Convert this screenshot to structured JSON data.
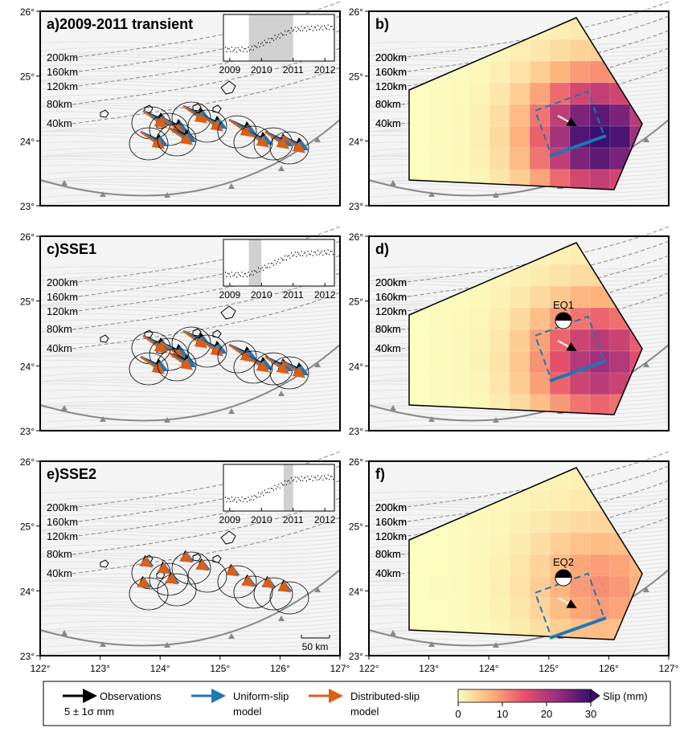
{
  "panels": [
    {
      "id": "a",
      "letter": "a)",
      "title": "2009-2011 transient",
      "inset": true,
      "shade": [
        2009.6,
        2011.0
      ]
    },
    {
      "id": "b",
      "letter": "b)",
      "title": "",
      "slip_scale": 1.0,
      "eq": ""
    },
    {
      "id": "c",
      "letter": "c)",
      "title": "SSE1",
      "inset": true,
      "shade": [
        2009.6,
        2010.0
      ]
    },
    {
      "id": "d",
      "letter": "d)",
      "title": "",
      "slip_scale": 0.7,
      "eq": "EQ1"
    },
    {
      "id": "e",
      "letter": "e)",
      "title": "SSE2",
      "inset": true,
      "shade": [
        2010.7,
        2011.0
      ]
    },
    {
      "id": "f",
      "letter": "f)",
      "title": "",
      "slip_scale": 0.3,
      "eq": "EQ2"
    }
  ],
  "contours": [
    "200km",
    "160km",
    "120km",
    "80km",
    "40km"
  ],
  "lon_ticks": [
    "122°",
    "123°",
    "124°",
    "125°",
    "126°",
    "127°"
  ],
  "lat_ticks": [
    "26°",
    "25°",
    "24°",
    "23°"
  ],
  "inset_years": [
    "2009",
    "2010",
    "2011",
    "2012"
  ],
  "scale_bar": "50 km",
  "legend": {
    "observations": "Observations",
    "obs_scale": "5 ± 1σ mm",
    "uniform": "Uniform-slip",
    "uniform2": "model",
    "distributed": "Distributed-slip",
    "distributed2": "model",
    "colorbar_label": "Slip (mm)",
    "colorbar_ticks": [
      "0",
      "10",
      "20",
      "30"
    ]
  },
  "colors": {
    "observations": "#000000",
    "uniform": "#1f77b4",
    "distributed": "#d95f1a"
  }
}
